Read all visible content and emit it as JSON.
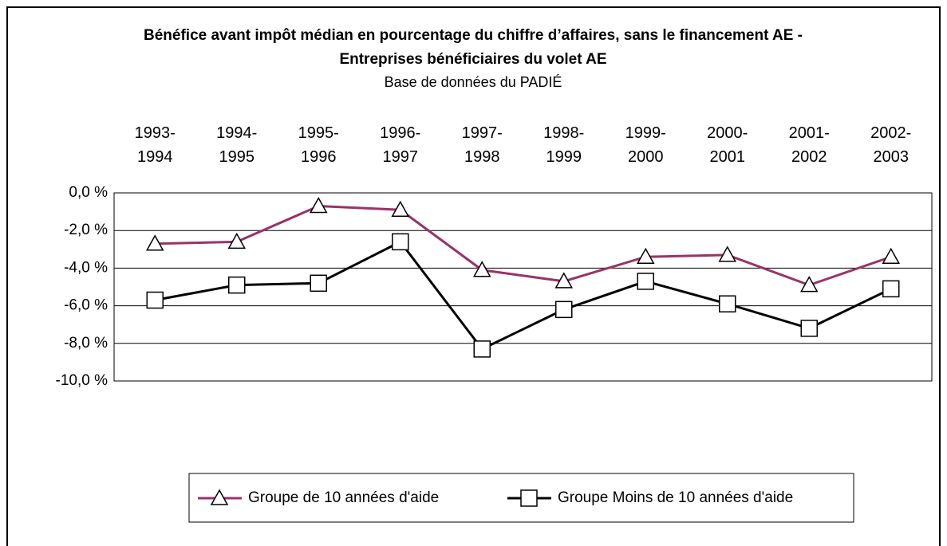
{
  "chart_data": {
    "type": "line",
    "title": "Bénéfice avant impôt médian en pourcentage du chiffre d’affaires, sans le financement AE - Entreprises bénéficiaires du volet AE",
    "subtitle": "Base de données du PADIÉ",
    "categories": [
      "1993-1994",
      "1994-1995",
      "1995-1996",
      "1996-1997",
      "1997-1998",
      "1998-1999",
      "1999-2000",
      "2000-2001",
      "2001-2002",
      "2002-2003"
    ],
    "series": [
      {
        "name": "Groupe de 10 années d'aide",
        "color": "#993366",
        "marker": "triangle",
        "values": [
          -2.7,
          -2.6,
          -0.7,
          -0.9,
          -4.1,
          -4.7,
          -3.4,
          -3.3,
          -4.9,
          -3.4
        ]
      },
      {
        "name": "Groupe Moins de 10 années d'aide",
        "color": "#000000",
        "marker": "square",
        "values": [
          -5.7,
          -4.9,
          -4.8,
          -2.6,
          -8.3,
          -6.2,
          -4.7,
          -5.9,
          -7.2,
          -5.1
        ]
      }
    ],
    "ylim": [
      -10,
      0
    ],
    "yticks": [
      {
        "value": 0,
        "label": "0,0 %"
      },
      {
        "value": -2,
        "label": "-2,0 %"
      },
      {
        "value": -4,
        "label": "-4,0 %"
      },
      {
        "value": -6,
        "label": "-6,0 %"
      },
      {
        "value": -8,
        "label": "-8,0 %"
      },
      {
        "value": -10,
        "label": "-10,0 %"
      }
    ],
    "grid": true,
    "legend": "bottom"
  }
}
